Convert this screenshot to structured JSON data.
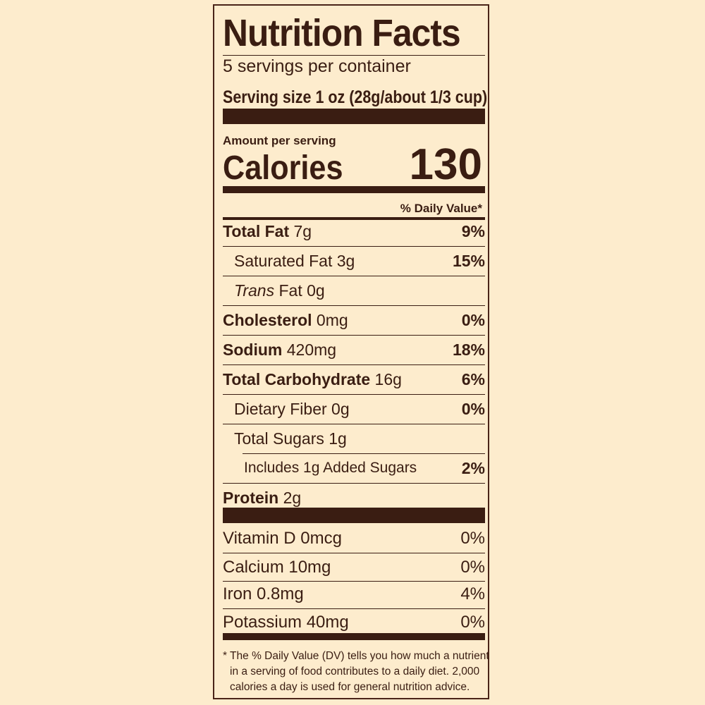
{
  "title": "Nutrition Facts",
  "servings": "5 servings per container",
  "serving_size": "Serving size 1 oz (28g/about 1/3 cup)",
  "amount_per_serving": "Amount per serving",
  "calories_label": "Calories",
  "calories": "130",
  "dv_header": "% Daily Value*",
  "nutrients": [
    {
      "name": "Total Fat",
      "amount": "7g",
      "dv": "9%"
    },
    {
      "name": "Saturated Fat 3g",
      "dv": "15%"
    },
    {
      "name_italic": "Trans",
      "name": "Fat 0g"
    },
    {
      "name": "Cholesterol",
      "amount": "0mg",
      "dv": "0%"
    },
    {
      "name": "Sodium",
      "amount": "420mg",
      "dv": "18%"
    },
    {
      "name": "Total Carbohydrate",
      "amount": "16g",
      "dv": "6%"
    },
    {
      "name": "Dietary Fiber 0g",
      "dv": "0%"
    },
    {
      "name": "Total Sugars 1g"
    },
    {
      "name": "Includes 1g Added Sugars",
      "dv": "2%"
    },
    {
      "name": "Protein",
      "amount": "2g"
    }
  ],
  "vitamins": [
    {
      "name": "Vitamin D 0mcg",
      "dv": "0%"
    },
    {
      "name": "Calcium 10mg",
      "dv": "0%"
    },
    {
      "name": "Iron 0.8mg",
      "dv": "4%"
    },
    {
      "name": "Potassium 40mg",
      "dv": "0%"
    }
  ],
  "footnote": [
    "* The % Daily Value (DV) tells you how much a nutrient",
    "in a serving of food contributes to a daily diet. 2,000",
    "calories a day is used for general nutrition advice."
  ],
  "colors": {
    "background": "#fdeccd",
    "ink": "#3a1d12"
  }
}
